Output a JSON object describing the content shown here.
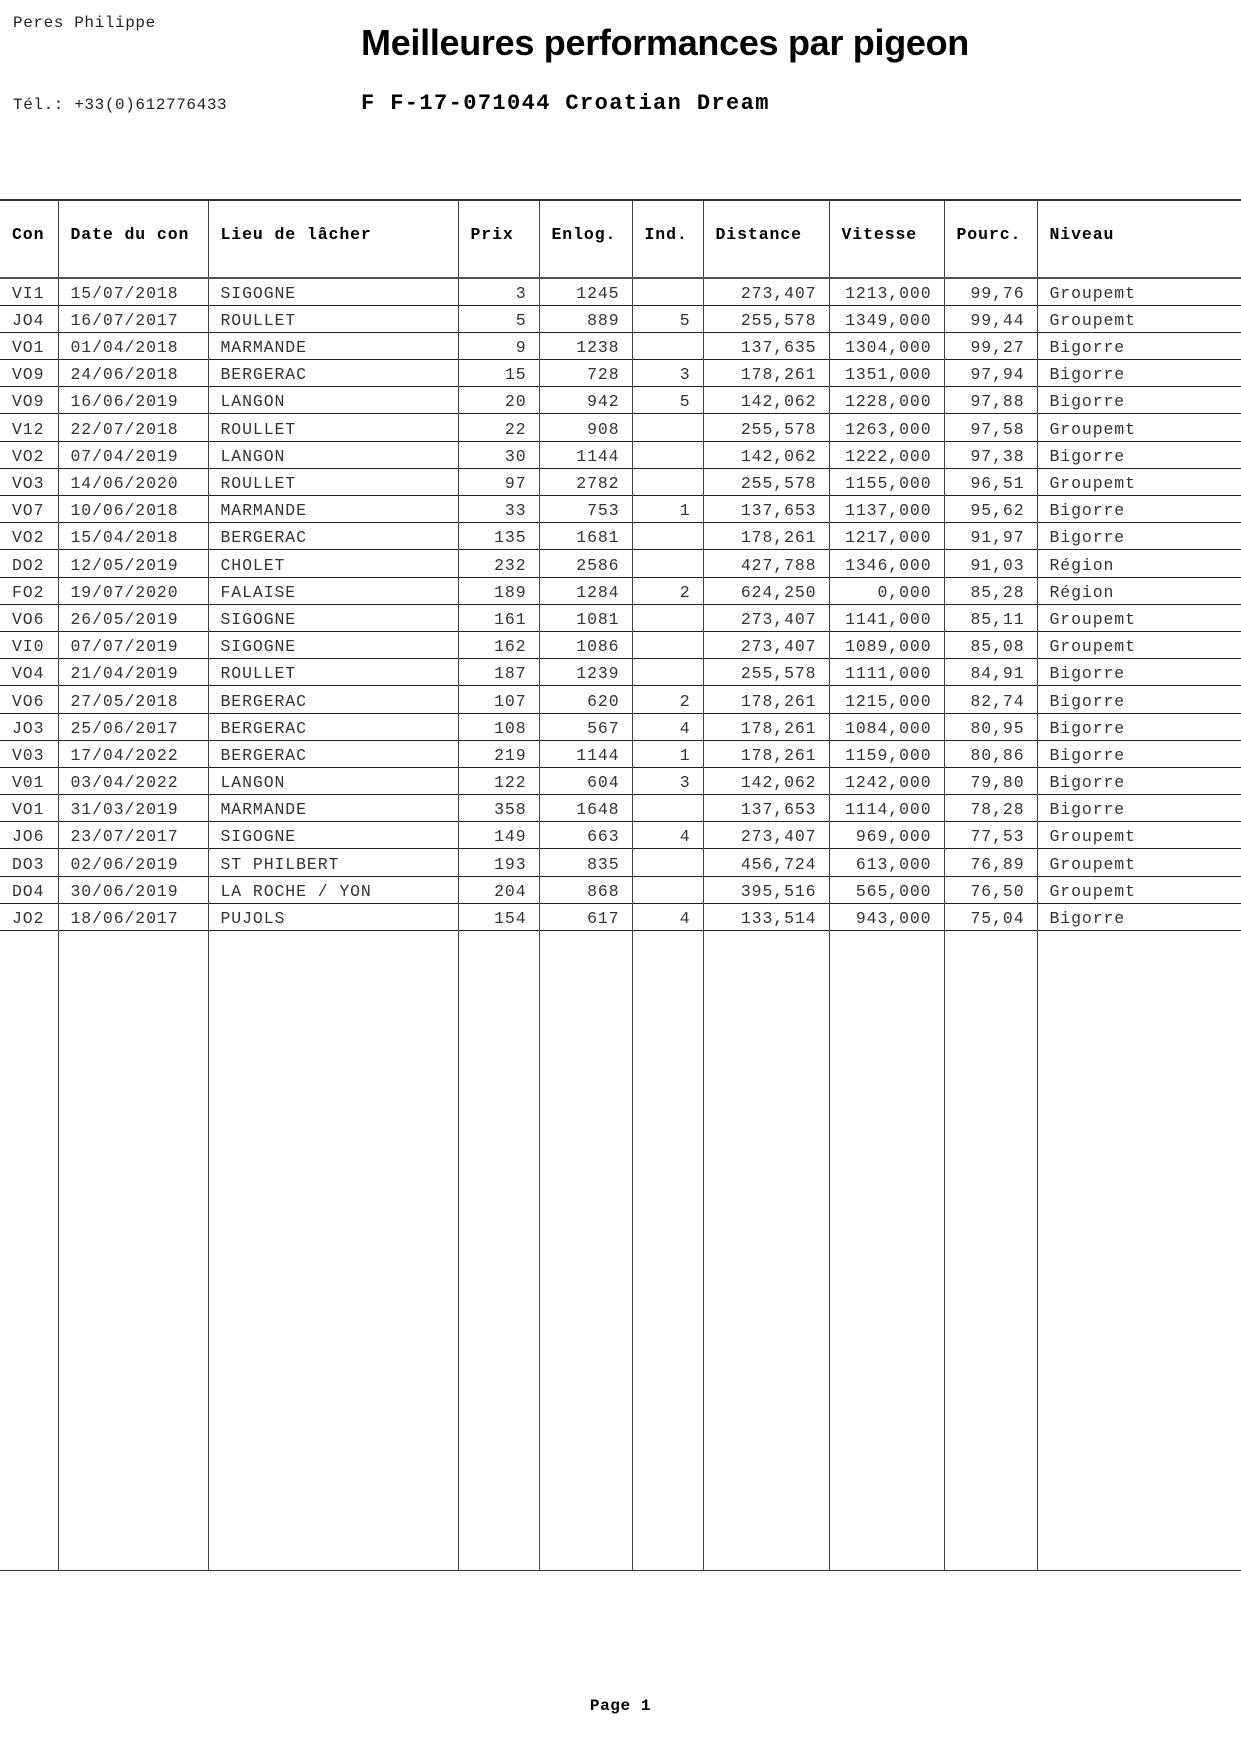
{
  "header": {
    "owner": "Peres Philippe",
    "phone": "Tél.: +33(0)612776433",
    "title": "Meilleures performances par pigeon",
    "pigeon": "F F-17-071044 Croatian Dream"
  },
  "table": {
    "columns": [
      "Con",
      "Date du con",
      "Lieu de lâcher",
      "Prix",
      "Enlog.",
      "Ind.",
      "Distance",
      "Vitesse",
      "Pourc.",
      "Niveau"
    ],
    "rows": [
      [
        "VI1",
        "15/07/2018",
        "SIGOGNE",
        "3",
        "1245",
        "",
        "273,407",
        "1213,000",
        "99,76",
        "Groupemt"
      ],
      [
        "JO4",
        "16/07/2017",
        "ROULLET",
        "5",
        "889",
        "5",
        "255,578",
        "1349,000",
        "99,44",
        "Groupemt"
      ],
      [
        "VO1",
        "01/04/2018",
        "MARMANDE",
        "9",
        "1238",
        "",
        "137,635",
        "1304,000",
        "99,27",
        "Bigorre"
      ],
      [
        "VO9",
        "24/06/2018",
        "BERGERAC",
        "15",
        "728",
        "3",
        "178,261",
        "1351,000",
        "97,94",
        "Bigorre"
      ],
      [
        "VO9",
        "16/06/2019",
        "LANGON",
        "20",
        "942",
        "5",
        "142,062",
        "1228,000",
        "97,88",
        "Bigorre"
      ],
      [
        "V12",
        "22/07/2018",
        "ROULLET",
        "22",
        "908",
        "",
        "255,578",
        "1263,000",
        "97,58",
        "Groupemt"
      ],
      [
        "VO2",
        "07/04/2019",
        "LANGON",
        "30",
        "1144",
        "",
        "142,062",
        "1222,000",
        "97,38",
        "Bigorre"
      ],
      [
        "VO3",
        "14/06/2020",
        "ROULLET",
        "97",
        "2782",
        "",
        "255,578",
        "1155,000",
        "96,51",
        "Groupemt"
      ],
      [
        "VO7",
        "10/06/2018",
        "MARMANDE",
        "33",
        "753",
        "1",
        "137,653",
        "1137,000",
        "95,62",
        "Bigorre"
      ],
      [
        "VO2",
        "15/04/2018",
        "BERGERAC",
        "135",
        "1681",
        "",
        "178,261",
        "1217,000",
        "91,97",
        "Bigorre"
      ],
      [
        "DO2",
        "12/05/2019",
        "CHOLET",
        "232",
        "2586",
        "",
        "427,788",
        "1346,000",
        "91,03",
        "Région"
      ],
      [
        "FO2",
        "19/07/2020",
        "FALAISE",
        "189",
        "1284",
        "2",
        "624,250",
        "0,000",
        "85,28",
        "Région"
      ],
      [
        "VO6",
        "26/05/2019",
        "SIGOGNE",
        "161",
        "1081",
        "",
        "273,407",
        "1141,000",
        "85,11",
        "Groupemt"
      ],
      [
        "VI0",
        "07/07/2019",
        "SIGOGNE",
        "162",
        "1086",
        "",
        "273,407",
        "1089,000",
        "85,08",
        "Groupemt"
      ],
      [
        "VO4",
        "21/04/2019",
        "ROULLET",
        "187",
        "1239",
        "",
        "255,578",
        "1111,000",
        "84,91",
        "Bigorre"
      ],
      [
        "VO6",
        "27/05/2018",
        "BERGERAC",
        "107",
        "620",
        "2",
        "178,261",
        "1215,000",
        "82,74",
        "Bigorre"
      ],
      [
        "JO3",
        "25/06/2017",
        "BERGERAC",
        "108",
        "567",
        "4",
        "178,261",
        "1084,000",
        "80,95",
        "Bigorre"
      ],
      [
        "V03",
        "17/04/2022",
        "BERGERAC",
        "219",
        "1144",
        "1",
        "178,261",
        "1159,000",
        "80,86",
        "Bigorre"
      ],
      [
        "V01",
        "03/04/2022",
        "LANGON",
        "122",
        "604",
        "3",
        "142,062",
        "1242,000",
        "79,80",
        "Bigorre"
      ],
      [
        "VO1",
        "31/03/2019",
        "MARMANDE",
        "358",
        "1648",
        "",
        "137,653",
        "1114,000",
        "78,28",
        "Bigorre"
      ],
      [
        "JO6",
        "23/07/2017",
        "SIGOGNE",
        "149",
        "663",
        "4",
        "273,407",
        "969,000",
        "77,53",
        "Groupemt"
      ],
      [
        "DO3",
        "02/06/2019",
        "ST PHILBERT",
        "193",
        "835",
        "",
        "456,724",
        "613,000",
        "76,89",
        "Groupemt"
      ],
      [
        "DO4",
        "30/06/2019",
        "LA ROCHE / YON",
        "204",
        "868",
        "",
        "395,516",
        "565,000",
        "76,50",
        "Groupemt"
      ],
      [
        "JO2",
        "18/06/2017",
        "PUJOLS",
        "154",
        "617",
        "4",
        "133,514",
        "943,000",
        "75,04",
        "Bigorre"
      ]
    ]
  },
  "footer": {
    "page": "Page 1"
  }
}
